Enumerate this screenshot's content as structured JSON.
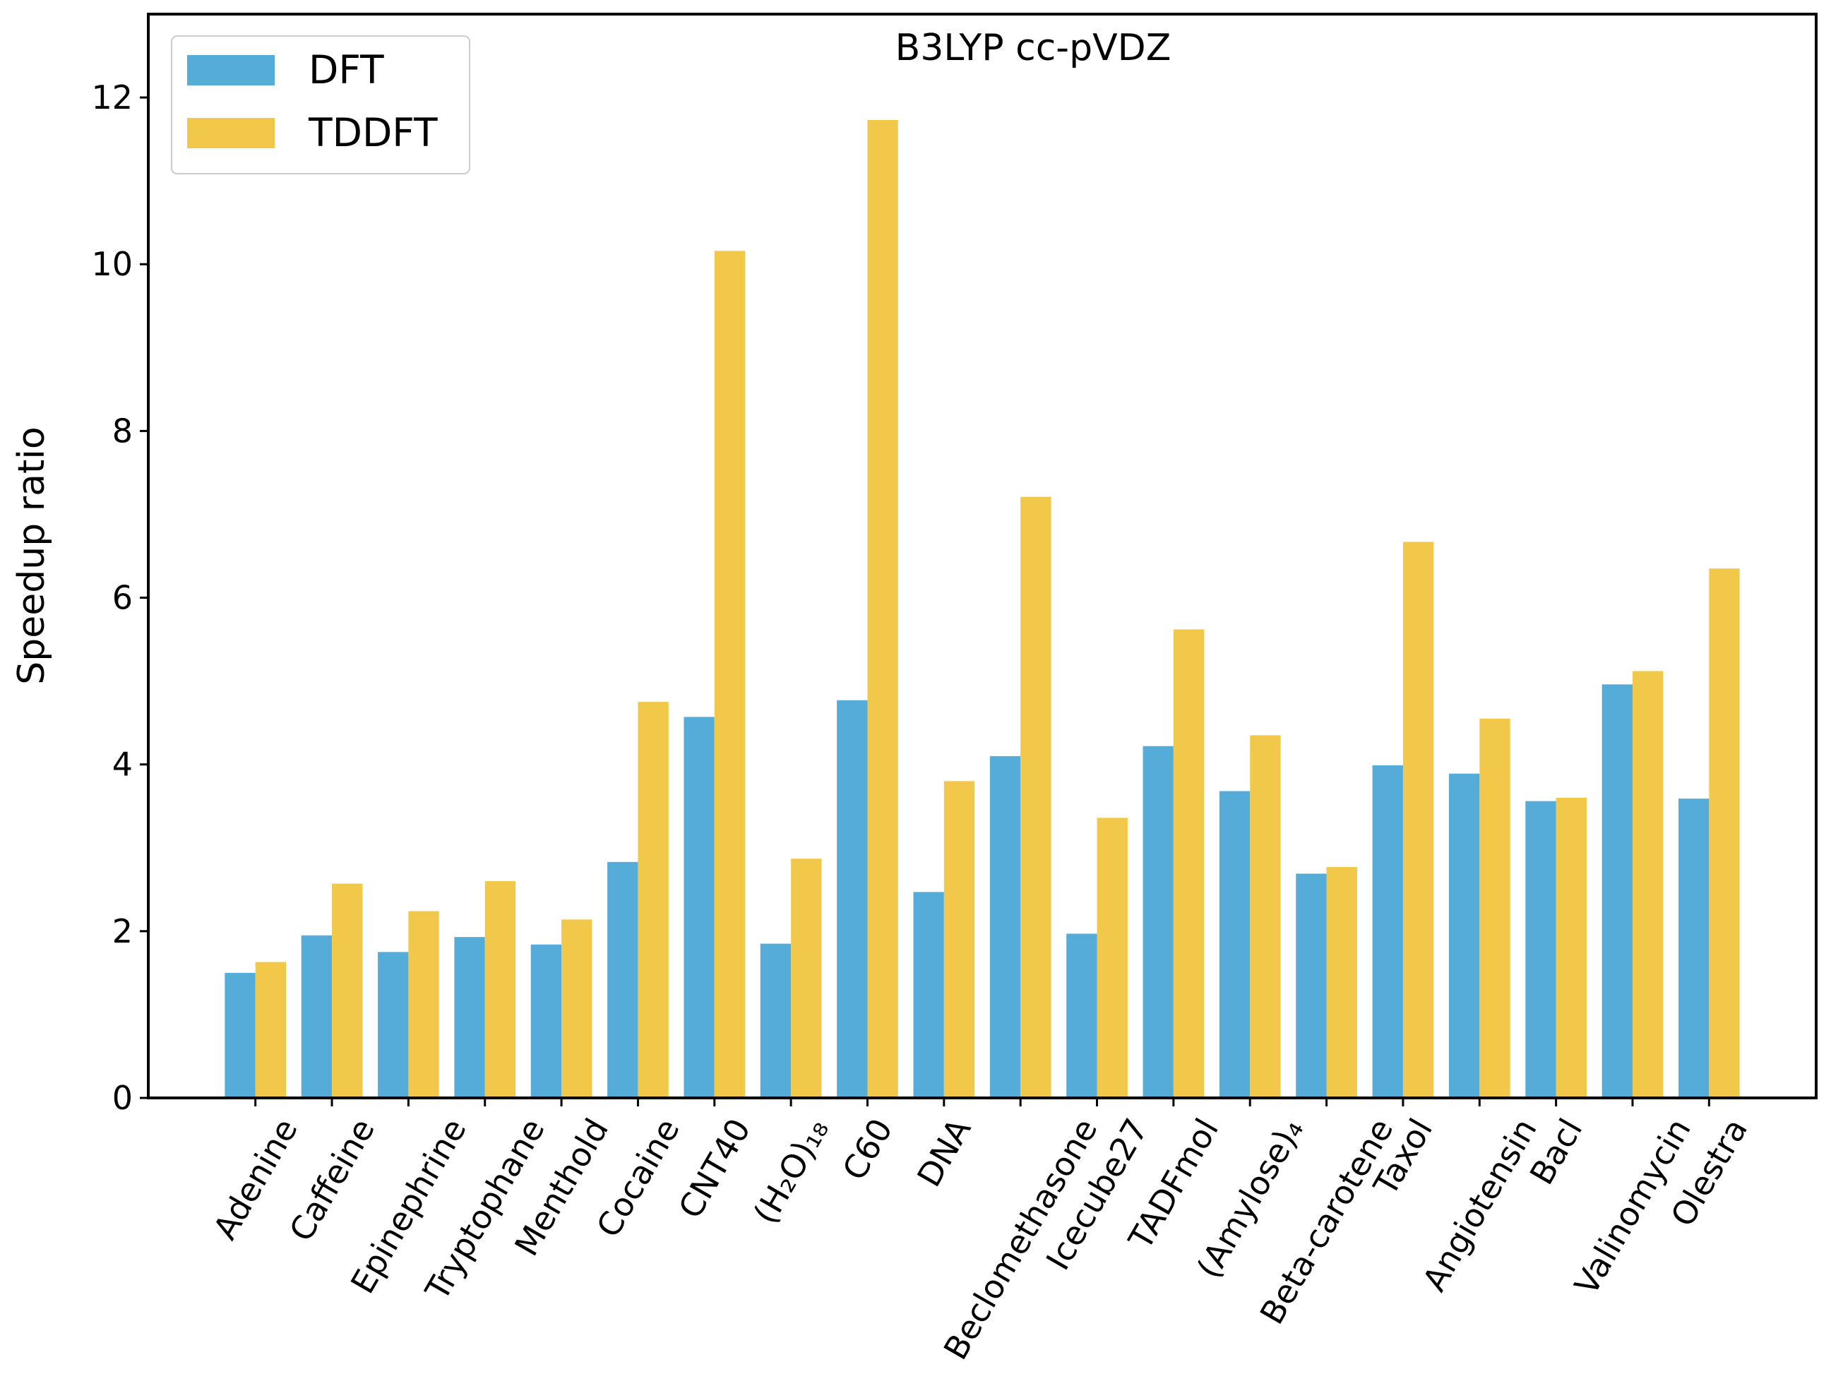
{
  "chart_data": {
    "type": "bar",
    "title": "B3LYP cc-pVDZ",
    "y_label": "Speedup ratio",
    "categories": [
      "Adenine",
      "Caffeine",
      "Epinephrine",
      "Tryptophane",
      "Menthold",
      "Cocaine",
      "CNT40",
      "(H₂O)₁₈",
      "C60",
      "DNA",
      "Beclomethasone",
      "Icecube27",
      "TADFmol",
      "(Amylose)₄",
      "Beta-carotene",
      "Taxol",
      "Angiotensin",
      "Bacl",
      "Valinomycin",
      "Olestra"
    ],
    "series": [
      {
        "name": "DFT",
        "color": "#56acd8",
        "values": [
          1.5,
          1.95,
          1.75,
          1.93,
          1.84,
          2.83,
          4.57,
          1.85,
          4.77,
          2.47,
          4.1,
          1.97,
          4.22,
          3.68,
          2.69,
          3.99,
          3.89,
          3.56,
          4.96,
          3.59
        ]
      },
      {
        "name": "TDDFT",
        "color": "#f2c84b",
        "values": [
          1.63,
          2.57,
          2.24,
          2.6,
          2.14,
          4.75,
          10.16,
          2.87,
          11.73,
          3.8,
          7.21,
          3.36,
          5.62,
          4.35,
          2.77,
          6.67,
          4.55,
          3.6,
          5.12,
          6.35
        ]
      }
    ],
    "ylim": [
      0,
      13
    ],
    "yticks": [
      0,
      2,
      4,
      6,
      8,
      10,
      12
    ],
    "grid": false,
    "legend": "upper left"
  }
}
